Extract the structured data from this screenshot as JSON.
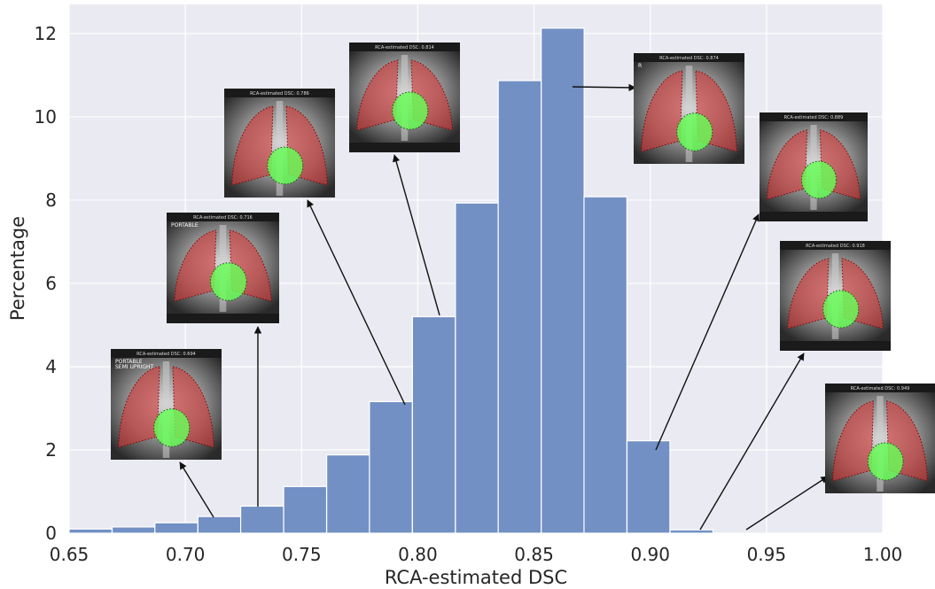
{
  "chart_data": {
    "type": "bar",
    "title": "",
    "xlabel": "RCA-estimated DSC",
    "ylabel": "Percentage",
    "xlim": [
      0.65,
      1.0
    ],
    "ylim": [
      0,
      12.7
    ],
    "grid": true,
    "bin_width": 0.01846,
    "bins": [
      {
        "start": 0.65,
        "value": 0.1
      },
      {
        "start": 0.6685,
        "value": 0.15
      },
      {
        "start": 0.6869,
        "value": 0.25
      },
      {
        "start": 0.7054,
        "value": 0.4
      },
      {
        "start": 0.7238,
        "value": 0.65
      },
      {
        "start": 0.7423,
        "value": 1.12
      },
      {
        "start": 0.7608,
        "value": 1.88
      },
      {
        "start": 0.7792,
        "value": 3.16
      },
      {
        "start": 0.7977,
        "value": 5.2
      },
      {
        "start": 0.8162,
        "value": 7.93
      },
      {
        "start": 0.8346,
        "value": 10.87
      },
      {
        "start": 0.8531,
        "value": 12.13
      },
      {
        "start": 0.8715,
        "value": 8.08
      },
      {
        "start": 0.89,
        "value": 2.22
      },
      {
        "start": 0.9085,
        "value": 0.08
      }
    ],
    "xticks": [
      "0.65",
      "0.70",
      "0.75",
      "0.80",
      "0.85",
      "0.90",
      "0.95",
      "1.00"
    ],
    "xtick_values": [
      0.65,
      0.7,
      0.75,
      0.8,
      0.85,
      0.9,
      0.95,
      1.0
    ],
    "yticks": [
      "0",
      "2",
      "4",
      "6",
      "8",
      "10",
      "12"
    ],
    "ytick_values": [
      0,
      2,
      4,
      6,
      8,
      10,
      12
    ],
    "colors": {
      "bar": "#7290c4",
      "bar_edge": "#ffffff",
      "plot_bg": "#eaeaf2",
      "grid": "#ffffff",
      "arrow": "#111111"
    },
    "annotations": [
      {
        "caption": "RCA-estimated DSC: 0.694",
        "corner_text": "PORTABLE\nSEMI UPRIGHT",
        "points_to": [
          0.715,
          0.4
        ]
      },
      {
        "caption": "RCA-estimated DSC: 0.716",
        "corner_text": "PORTABLE",
        "points_to": [
          0.733,
          0.65
        ]
      },
      {
        "caption": "RCA-estimated DSC: 0.786",
        "corner_text": "",
        "points_to": [
          0.795,
          3.16
        ]
      },
      {
        "caption": "RCA-estimated DSC: 0.814",
        "corner_text": "",
        "points_to": [
          0.808,
          5.2
        ]
      },
      {
        "caption": "RCA-estimated DSC: 0.874",
        "corner_text": "R",
        "points_to": [
          0.862,
          12.13
        ]
      },
      {
        "caption": "RCA-estimated DSC: 0.889",
        "corner_text": "",
        "points_to": [
          0.902,
          2.22
        ]
      },
      {
        "caption": "RCA-estimated DSC: 0.918",
        "corner_text": "",
        "points_to": [
          0.92,
          0.08
        ]
      },
      {
        "caption": "RCA-estimated DSC: 0.949",
        "corner_text": "",
        "points_to": [
          0.94,
          0.0
        ]
      }
    ]
  }
}
